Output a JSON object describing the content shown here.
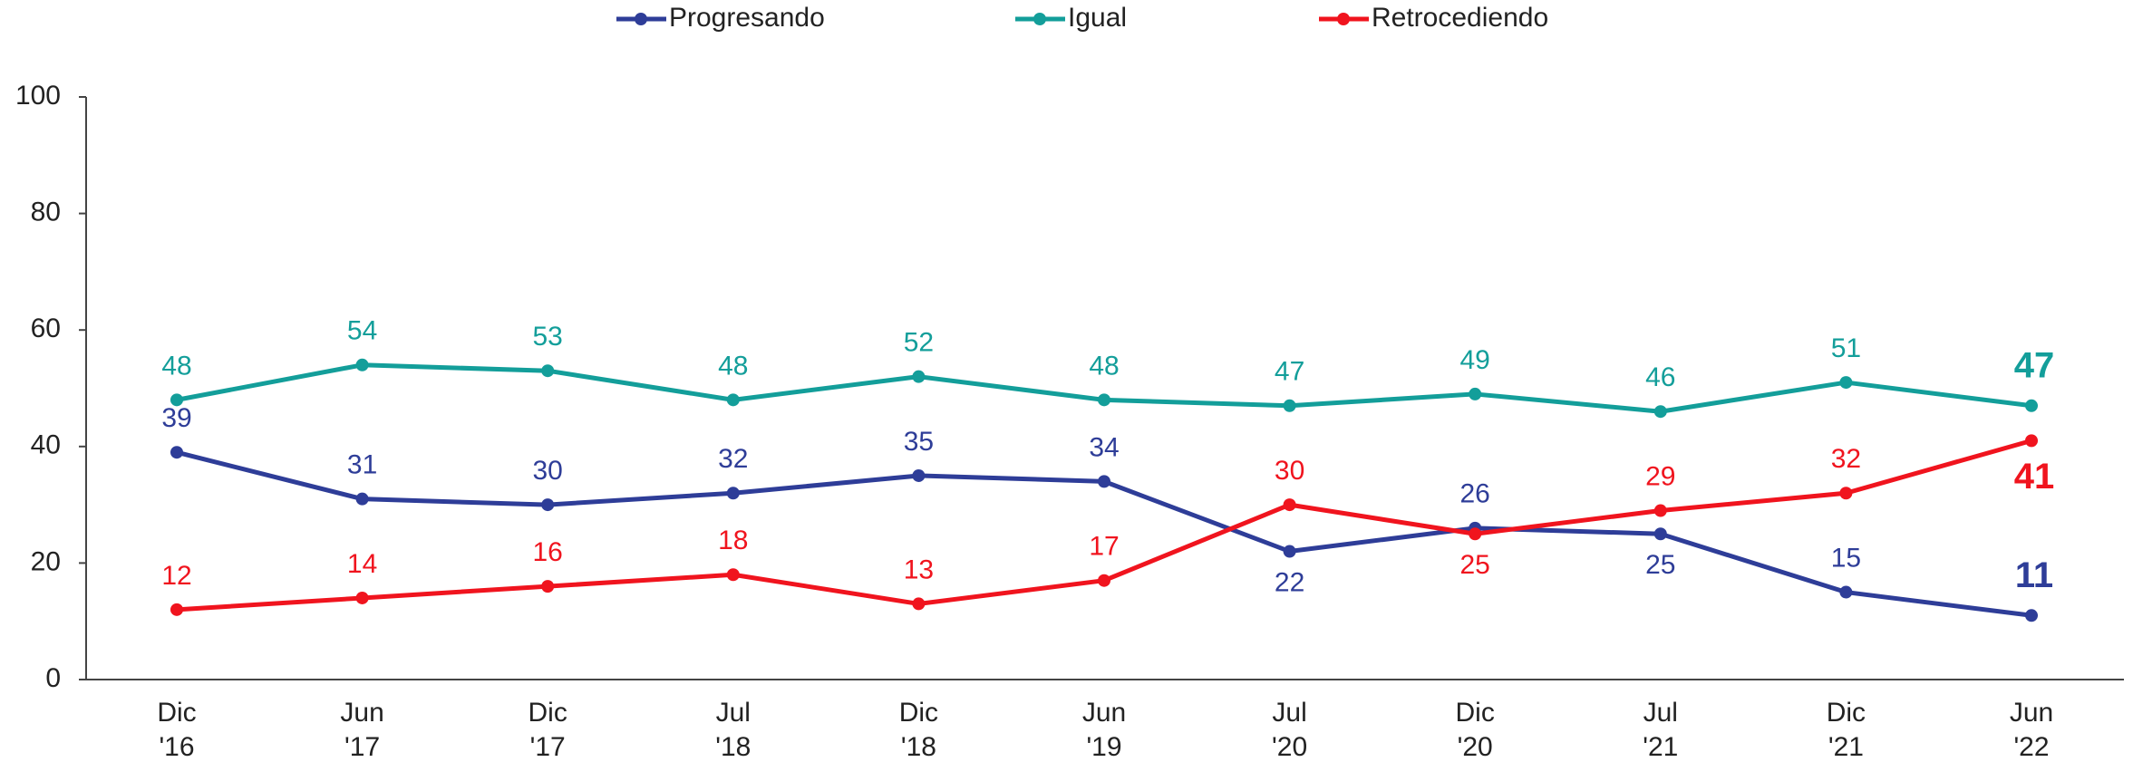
{
  "chart_data": {
    "type": "line",
    "categories": [
      [
        "Dic",
        "'16"
      ],
      [
        "Jun",
        "'17"
      ],
      [
        "Dic",
        "'17"
      ],
      [
        "Jul",
        "'18"
      ],
      [
        "Dic",
        "'18"
      ],
      [
        "Jun",
        "'19"
      ],
      [
        "Jul",
        "'20"
      ],
      [
        "Dic",
        "'20"
      ],
      [
        "Jul",
        "'21"
      ],
      [
        "Dic",
        "'21"
      ],
      [
        "Jun",
        "'22"
      ]
    ],
    "series": [
      {
        "name": "Progresando",
        "color": "#2e3d98",
        "values": [
          39,
          31,
          30,
          32,
          35,
          34,
          22,
          26,
          25,
          15,
          11
        ]
      },
      {
        "name": "Igual",
        "color": "#139e9a",
        "values": [
          48,
          54,
          53,
          48,
          52,
          48,
          47,
          49,
          46,
          51,
          47
        ]
      },
      {
        "name": "Retrocediendo",
        "color": "#f0141e",
        "values": [
          12,
          14,
          16,
          18,
          13,
          17,
          30,
          25,
          29,
          32,
          41
        ]
      }
    ],
    "ylim": [
      0,
      100
    ],
    "yticks": [
      0,
      20,
      40,
      60,
      80,
      100
    ],
    "grid": false,
    "legend": "top"
  }
}
